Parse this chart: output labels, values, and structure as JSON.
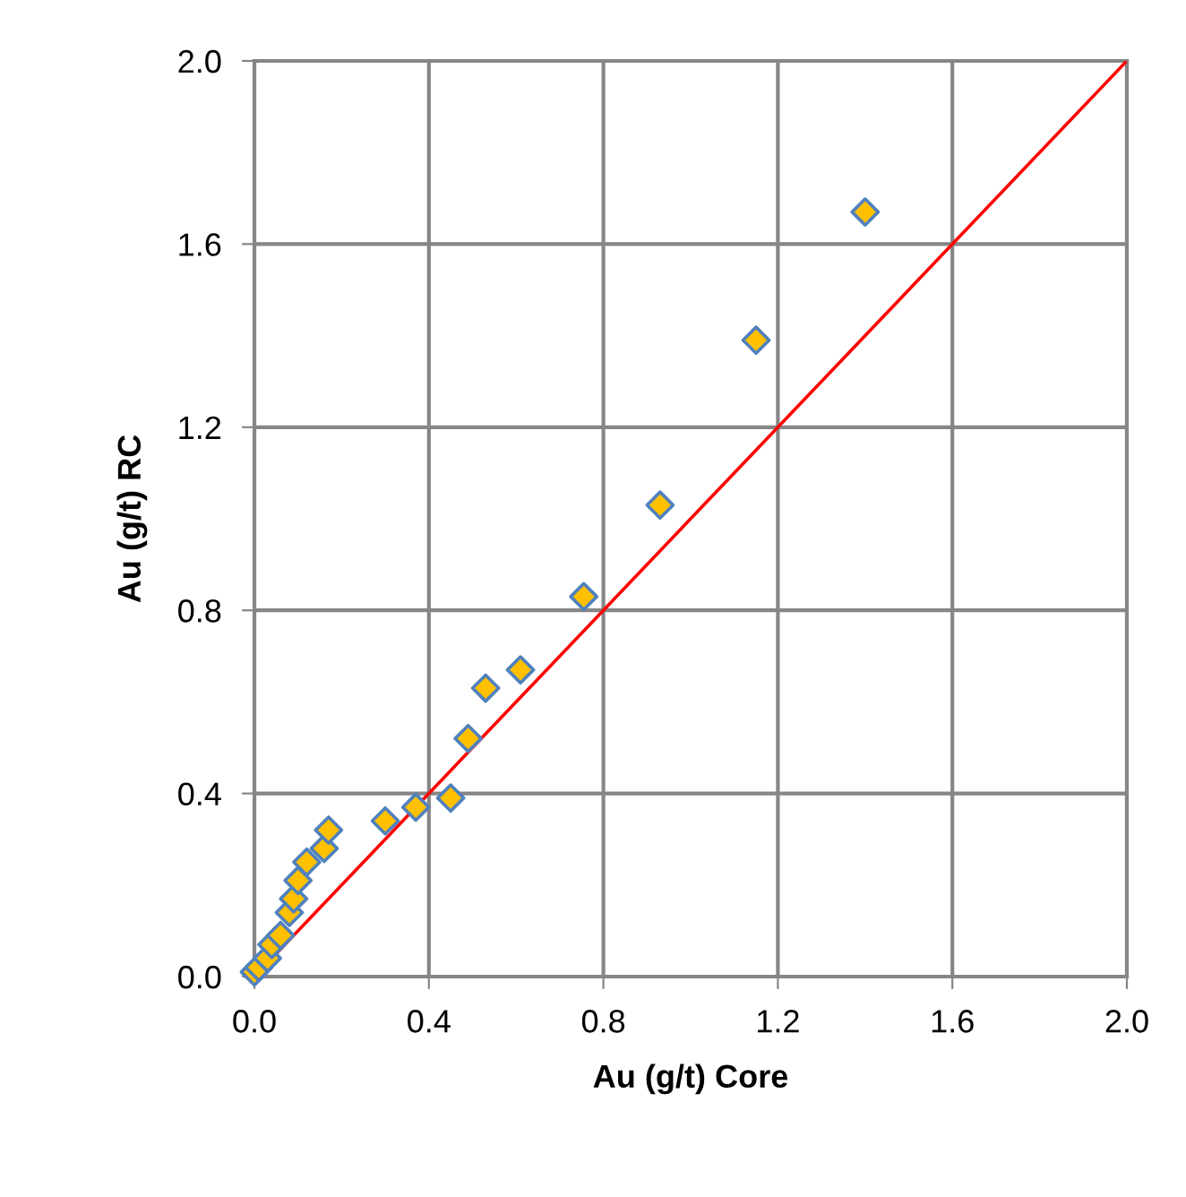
{
  "chart_data": {
    "type": "scatter",
    "xlabel": "Au (g/t) Core",
    "ylabel": "Au (g/t) RC",
    "series": [
      {
        "color": "#ffc000",
        "marker": "diamond",
        "x": [
          0.0,
          0.01,
          0.03,
          0.04,
          0.06,
          0.08,
          0.09,
          0.1,
          0.12,
          0.16,
          0.17,
          0.3,
          0.37,
          0.45,
          0.49,
          0.53,
          0.61,
          0.755,
          0.93,
          1.15,
          1.4
        ],
        "values": [
          0.01,
          0.02,
          0.04,
          0.07,
          0.09,
          0.14,
          0.17,
          0.21,
          0.25,
          0.28,
          0.32,
          0.34,
          0.37,
          0.39,
          0.52,
          0.63,
          0.67,
          0.83,
          1.03,
          1.39,
          1.67
        ]
      },
      {
        "type": "line",
        "color": "#ff0000",
        "marker": "none",
        "x": [
          0,
          2
        ],
        "values": [
          0,
          2
        ]
      }
    ],
    "xlim": [
      0,
      2
    ],
    "ylim": [
      0,
      2
    ],
    "xticks": [
      {
        "value": 0,
        "label": "0.0"
      },
      {
        "value": 0.4,
        "label": "0.4"
      },
      {
        "value": 0.8,
        "label": "0.8"
      },
      {
        "value": 1.2,
        "label": "1.2"
      },
      {
        "value": 1.6,
        "label": "1.6"
      },
      {
        "value": 2,
        "label": "2.0"
      }
    ],
    "yticks": [
      {
        "value": 0,
        "label": "0.0"
      },
      {
        "value": 0.4,
        "label": "0.4"
      },
      {
        "value": 0.8,
        "label": "0.8"
      },
      {
        "value": 1.2,
        "label": "1.2"
      },
      {
        "value": 1.6,
        "label": "1.6"
      },
      {
        "value": 2,
        "label": "2.0"
      }
    ],
    "grid": true
  }
}
